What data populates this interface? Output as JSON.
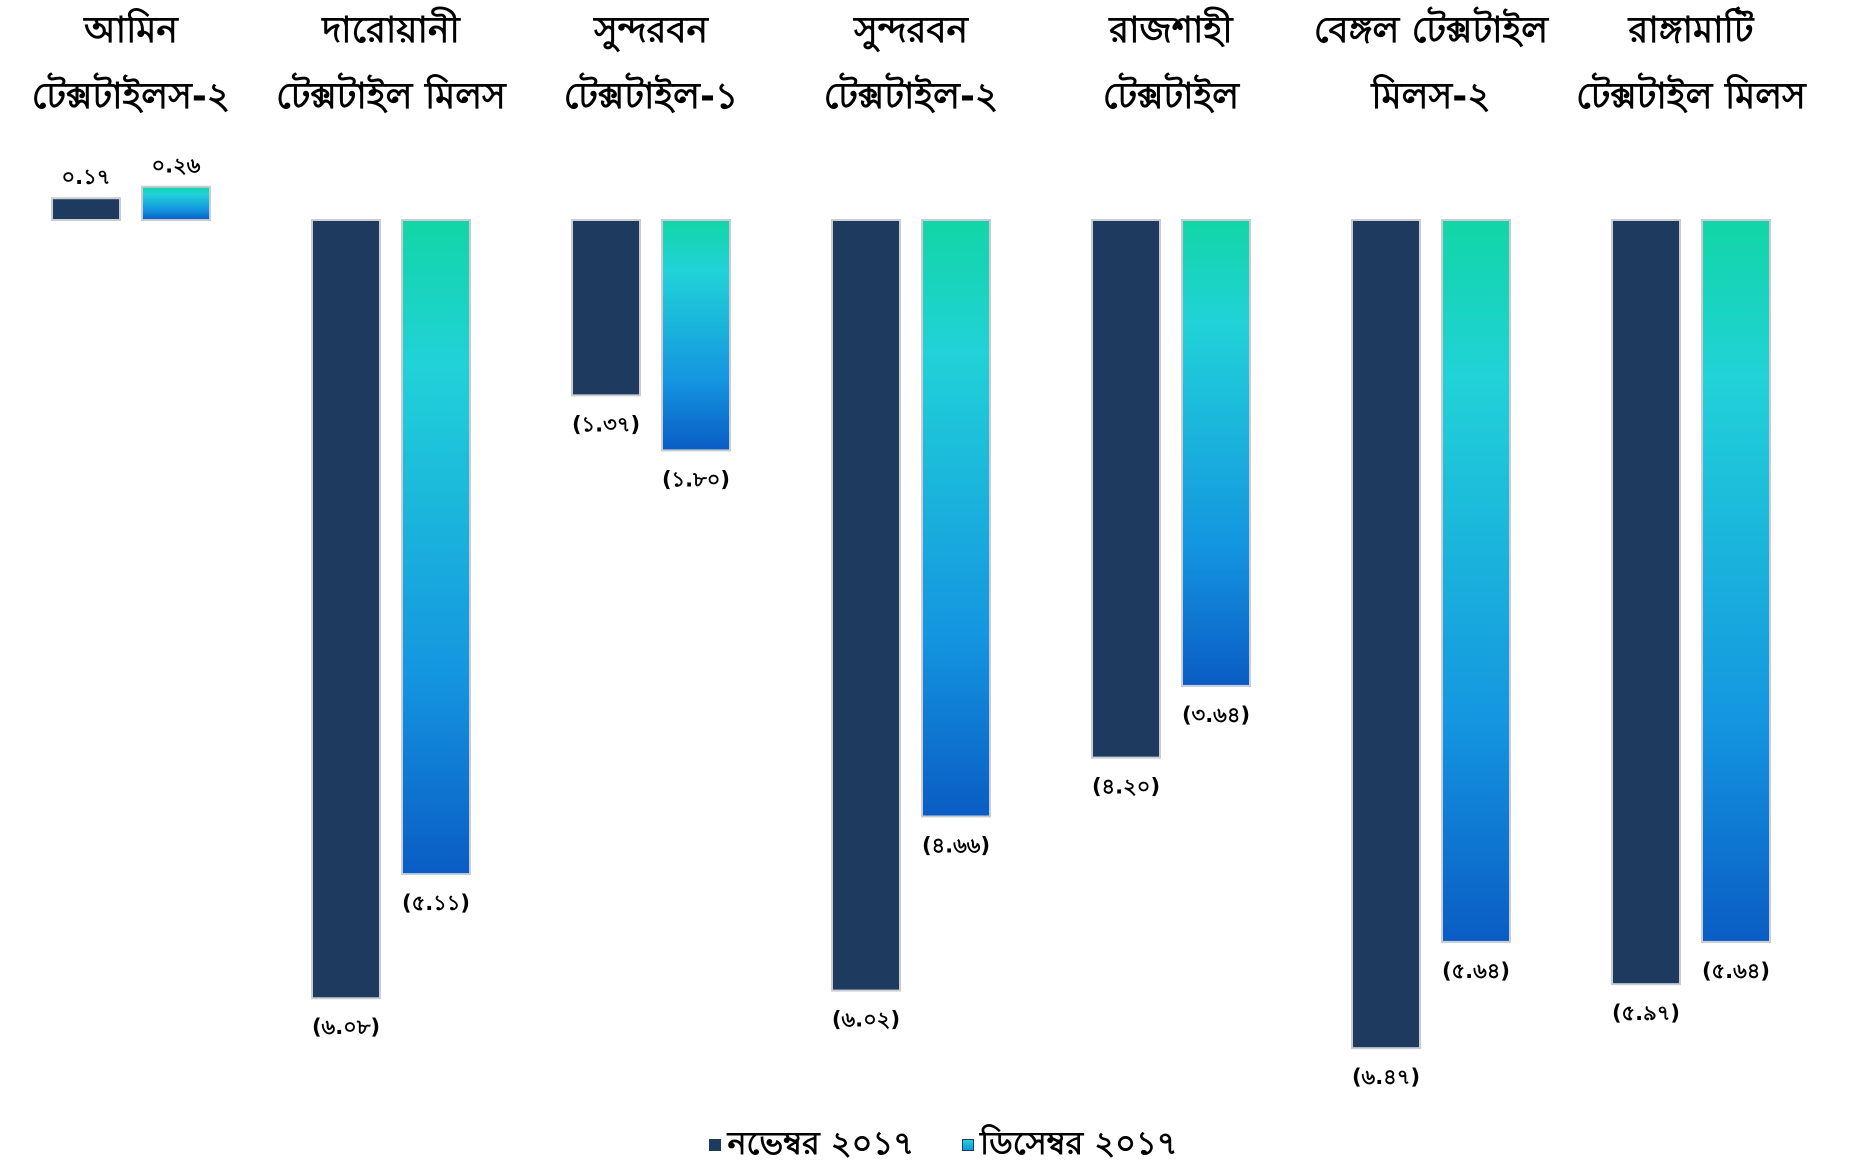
{
  "chart_data": {
    "type": "bar",
    "categories": [
      [
        "আমিন",
        "টেক্সটাইলস-২"
      ],
      [
        "দারোয়ানী",
        "টেক্সটাইল মিলস"
      ],
      [
        "সুন্দরবন",
        "টেক্সটাইল-১"
      ],
      [
        "সুন্দরবন",
        "টেক্সটাইল-২"
      ],
      [
        "রাজশাহী",
        "টেক্সটাইল"
      ],
      [
        "বেঙ্গল টেক্সটাইল",
        "মিলস-২"
      ],
      [
        "রাঙ্গামাটি",
        "টেক্সটাইল মিলস"
      ]
    ],
    "series": [
      {
        "name": "নভেম্বর ২০১৭",
        "color": "#1f3a5f",
        "values": [
          0.17,
          -6.08,
          -1.37,
          -6.02,
          -4.2,
          -6.47,
          -5.97
        ],
        "labels": [
          "০.১৭",
          "(৬.০৮)",
          "(১.৩৭)",
          "(৬.০২)",
          "(৪.২০)",
          "(৬.৪৭)",
          "(৫.৯৭)"
        ]
      },
      {
        "name": "ডিসেম্বর ২০১৭",
        "color": "#1aa9e0",
        "values": [
          0.26,
          -5.11,
          -1.8,
          -4.66,
          -3.64,
          -5.64,
          -5.64
        ],
        "labels": [
          "০.২৬",
          "(৫.১১)",
          "(১.৮০)",
          "(৪.৬৬)",
          "(৩.৬৪)",
          "(৫.৬৪)",
          "(৫.৬৪)"
        ]
      }
    ],
    "title": "",
    "xlabel": "",
    "ylabel": "",
    "ylim": [
      -6.5,
      0.3
    ],
    "legend_position": "bottom",
    "grid": false
  }
}
